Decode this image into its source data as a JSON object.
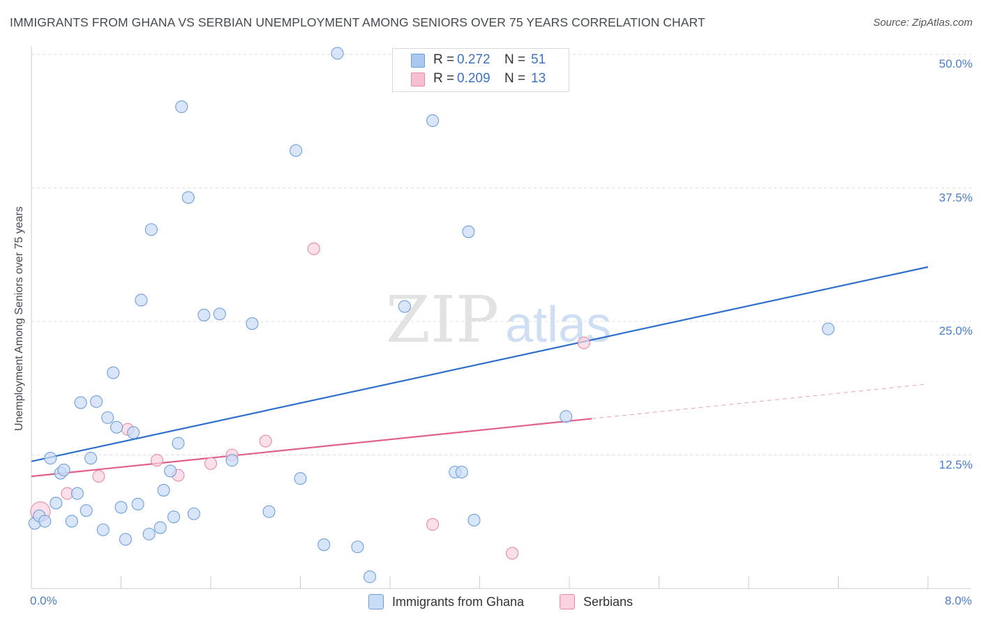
{
  "header": {
    "title": "IMMIGRANTS FROM GHANA VS SERBIAN UNEMPLOYMENT AMONG SENIORS OVER 75 YEARS CORRELATION CHART",
    "source": "Source: ZipAtlas.com"
  },
  "watermark": {
    "zip": "ZIP",
    "atlas": "atlas"
  },
  "legend": {
    "r_label": "R =",
    "n_label": "N =",
    "rows": [
      {
        "r": "0.272",
        "n": "51",
        "color": "#a9c8f0",
        "border": "#6f9fd8"
      },
      {
        "r": "0.209",
        "n": "13",
        "color": "#f8bfd0",
        "border": "#e68aa6"
      }
    ]
  },
  "bottom_legend": [
    {
      "label": "Immigrants from Ghana",
      "color": "#c9dcf6",
      "border": "#6f9fd8"
    },
    {
      "label": "Serbians",
      "color": "#fbd3df",
      "border": "#e68aa6"
    }
  ],
  "chart_data": {
    "type": "scatter",
    "title": "IMMIGRANTS FROM GHANA VS SERBIAN UNEMPLOYMENT AMONG SENIORS OVER 75 YEARS CORRELATION CHART",
    "xlabel": "",
    "ylabel": "Unemployment Among Seniors over 75 years",
    "xlim": [
      0,
      8.0
    ],
    "ylim": [
      0,
      50
    ],
    "x_tick_labels": [
      "0.0%",
      "8.0%"
    ],
    "y_ticks": [
      12.5,
      25.0,
      37.5,
      50.0
    ],
    "y_tick_labels": [
      "12.5%",
      "25.0%",
      "37.5%",
      "50.0%"
    ],
    "grid": true,
    "series": [
      {
        "name": "Immigrants from Ghana",
        "color": "#6f9fd8",
        "fill": "#c9dcf6",
        "line_color": "#2f6fcc",
        "trend": {
          "x": [
            0,
            8.0
          ],
          "y": [
            11.9,
            30.1
          ]
        },
        "points": [
          [
            0.03,
            6.1
          ],
          [
            0.07,
            6.8
          ],
          [
            0.12,
            6.3
          ],
          [
            0.17,
            12.2
          ],
          [
            0.22,
            8.0
          ],
          [
            0.26,
            10.8
          ],
          [
            0.29,
            11.1
          ],
          [
            0.36,
            6.3
          ],
          [
            0.41,
            8.9
          ],
          [
            0.44,
            17.4
          ],
          [
            0.49,
            7.3
          ],
          [
            0.53,
            12.2
          ],
          [
            0.58,
            17.5
          ],
          [
            0.64,
            5.5
          ],
          [
            0.68,
            16.0
          ],
          [
            0.73,
            20.2
          ],
          [
            0.76,
            15.1
          ],
          [
            0.8,
            7.6
          ],
          [
            0.84,
            4.6
          ],
          [
            0.91,
            14.6
          ],
          [
            0.95,
            7.9
          ],
          [
            0.98,
            27.0
          ],
          [
            1.05,
            5.1
          ],
          [
            1.07,
            33.6
          ],
          [
            1.15,
            5.7
          ],
          [
            1.18,
            9.2
          ],
          [
            1.24,
            11.0
          ],
          [
            1.27,
            6.7
          ],
          [
            1.31,
            13.6
          ],
          [
            1.34,
            45.1
          ],
          [
            1.4,
            36.6
          ],
          [
            1.45,
            7.0
          ],
          [
            1.54,
            25.6
          ],
          [
            1.68,
            25.7
          ],
          [
            1.79,
            12.0
          ],
          [
            1.97,
            24.8
          ],
          [
            2.12,
            7.2
          ],
          [
            2.36,
            41.0
          ],
          [
            2.4,
            10.3
          ],
          [
            2.61,
            4.1
          ],
          [
            2.73,
            50.1
          ],
          [
            2.91,
            3.9
          ],
          [
            3.02,
            1.1
          ],
          [
            3.33,
            26.4
          ],
          [
            3.58,
            43.8
          ],
          [
            3.78,
            10.9
          ],
          [
            3.84,
            10.9
          ],
          [
            3.9,
            33.4
          ],
          [
            3.95,
            6.4
          ],
          [
            4.77,
            16.1
          ],
          [
            7.11,
            24.3
          ]
        ]
      },
      {
        "name": "Serbians",
        "color": "#e68aa6",
        "fill": "#fbd3df",
        "line_color": "#e0608a",
        "trend": {
          "x": [
            0,
            5.0
          ],
          "y": [
            10.5,
            15.9
          ]
        },
        "trend_ext": {
          "x": [
            5.0,
            7.96
          ],
          "y": [
            15.9,
            19.1
          ]
        },
        "points": [
          [
            0.08,
            7.2
          ],
          [
            0.32,
            8.9
          ],
          [
            0.6,
            10.5
          ],
          [
            0.86,
            14.9
          ],
          [
            1.12,
            12.0
          ],
          [
            1.31,
            10.6
          ],
          [
            1.6,
            11.7
          ],
          [
            1.79,
            12.5
          ],
          [
            2.09,
            13.8
          ],
          [
            2.52,
            31.8
          ],
          [
            3.58,
            6.0
          ],
          [
            4.29,
            3.3
          ],
          [
            4.93,
            23.0
          ]
        ]
      }
    ]
  }
}
